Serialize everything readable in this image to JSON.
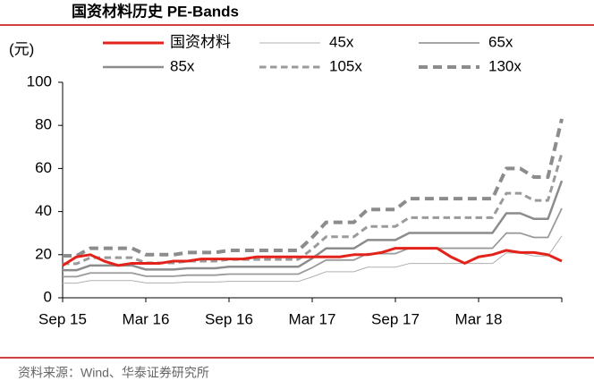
{
  "chart_data": {
    "type": "line",
    "title": "国资材料历史 PE-Bands",
    "y_unit": "(元)",
    "source": "资料来源：Wind、华泰证券研究所",
    "categories": [
      "Sep 15",
      null,
      null,
      null,
      null,
      null,
      "Mar 16",
      null,
      null,
      null,
      null,
      null,
      "Sep 16",
      null,
      null,
      null,
      null,
      null,
      "Mar 17",
      null,
      null,
      null,
      null,
      null,
      "Sep 17",
      null,
      null,
      null,
      null,
      null,
      "Mar 18",
      null,
      null,
      null,
      null,
      null,
      null
    ],
    "ylim": [
      0,
      100
    ],
    "yticks": [
      0,
      20,
      40,
      60,
      80,
      100
    ],
    "series": [
      {
        "name": "国资材料",
        "color": "#e3231b",
        "width": 3,
        "dashed": false,
        "values": [
          15,
          19,
          20,
          17,
          15,
          16,
          16,
          16,
          17,
          17,
          18,
          18,
          18,
          18,
          19,
          19,
          19,
          19,
          19,
          19,
          19,
          20,
          20,
          21,
          23,
          23,
          23,
          23,
          19,
          16,
          19,
          20,
          22,
          21,
          21,
          20,
          17
        ]
      },
      {
        "name": "45x",
        "color": "#b0b0b0",
        "width": 1,
        "dashed": false,
        "values": [
          6.8,
          6.8,
          8.0,
          8.0,
          8.0,
          8.0,
          6.9,
          6.9,
          6.9,
          7.3,
          7.3,
          7.3,
          7.6,
          7.6,
          7.6,
          7.6,
          7.6,
          7.6,
          9.7,
          12.1,
          12.1,
          12.1,
          14.2,
          14.2,
          14.2,
          15.9,
          15.9,
          15.9,
          15.9,
          15.9,
          15.9,
          15.9,
          20.8,
          20.8,
          19.4,
          19.4,
          28.7
        ]
      },
      {
        "name": "65x",
        "color": "#9a9a9a",
        "width": 1.8,
        "dashed": false,
        "values": [
          9.8,
          9.8,
          11.5,
          11.5,
          11.5,
          11.5,
          10,
          10,
          10,
          10.5,
          10.5,
          10.5,
          11,
          11,
          11,
          11,
          11,
          11,
          14,
          17.5,
          17.5,
          17.5,
          20.5,
          20.5,
          20.5,
          23,
          23,
          23,
          23,
          23,
          23,
          23,
          30,
          30,
          28,
          28,
          41.5
        ]
      },
      {
        "name": "85x",
        "color": "#8c8c8c",
        "width": 2.5,
        "dashed": false,
        "values": [
          12.8,
          12.8,
          15.0,
          15.0,
          15.0,
          15.0,
          13.1,
          13.1,
          13.1,
          13.7,
          13.7,
          13.7,
          14.4,
          14.4,
          14.4,
          14.4,
          14.4,
          14.4,
          18.3,
          22.9,
          22.9,
          22.9,
          26.8,
          26.8,
          26.8,
          30.1,
          30.1,
          30.1,
          30.1,
          30.1,
          30.1,
          30.1,
          39.2,
          39.2,
          36.6,
          36.6,
          54.3
        ]
      },
      {
        "name": "105x",
        "color": "#9a9a9a",
        "width": 3,
        "dashed": true,
        "values": [
          15.8,
          15.8,
          18.6,
          18.6,
          18.6,
          18.6,
          16.2,
          16.2,
          16.2,
          17.0,
          17.0,
          17.0,
          17.8,
          17.8,
          17.8,
          17.8,
          17.8,
          17.8,
          22.6,
          28.3,
          28.3,
          28.3,
          33.1,
          33.1,
          33.1,
          37.2,
          37.2,
          37.2,
          37.2,
          37.2,
          37.2,
          37.2,
          48.5,
          48.5,
          45.2,
          45.2,
          67.0
        ]
      },
      {
        "name": "130x",
        "color": "#8c8c8c",
        "width": 4,
        "dashed": true,
        "values": [
          19.5,
          19.5,
          23,
          23,
          23,
          23,
          20,
          20,
          20,
          21,
          21,
          21,
          22,
          22,
          22,
          22,
          22,
          22,
          28,
          35,
          35,
          35,
          41,
          41,
          41,
          46,
          46,
          46,
          46,
          46,
          46,
          46,
          60,
          60,
          56,
          56,
          83
        ]
      }
    ]
  }
}
